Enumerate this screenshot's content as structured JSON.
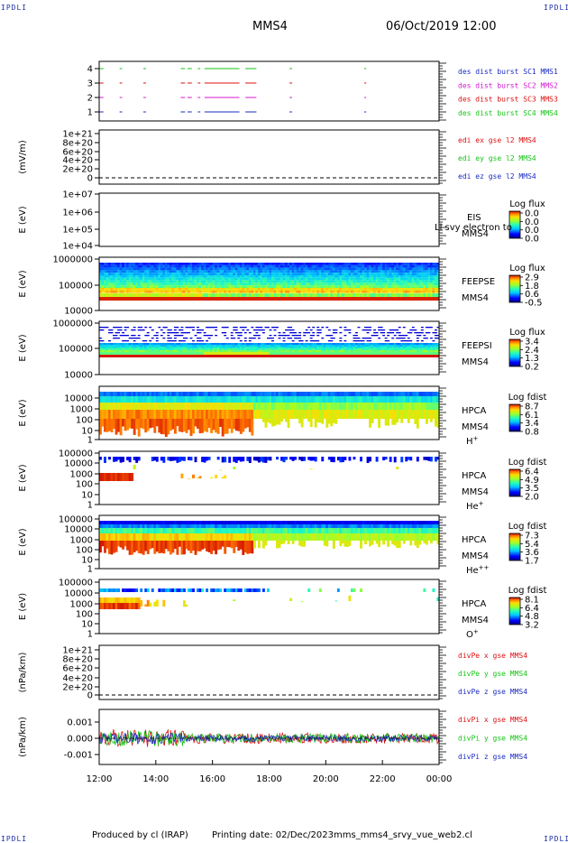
{
  "corners": {
    "tl": "IPDLI",
    "tr": "IPDLI",
    "bl": "IPDLI",
    "br": "IPDLI"
  },
  "header": {
    "spacecraft": "MMS4",
    "datetime": "06/Oct/2019 12:00"
  },
  "footer": {
    "produced_by": "Produced by cl (IRAP)",
    "printing_date": "Printing date: 02/Dec/2023",
    "filename": "mms_mms4_srvy_vue_web2.cl"
  },
  "colors": {
    "mms1": "#1a2cc0",
    "mms2": "#d01ad0",
    "mms3": "#dd1111",
    "mms4": "#16c416",
    "red": "#dd1111",
    "green": "#16c416",
    "blue": "#1a2cc0"
  },
  "chart_data": [
    {
      "type": "timeline",
      "panel": "burst",
      "ylabel": "",
      "yticks": [
        "4",
        "3",
        "2",
        "1"
      ],
      "legend": [
        {
          "text": "des dist burst SC1 MMS1",
          "color": "#1a2cc0"
        },
        {
          "text": "des dist burst SC2 MMS2",
          "color": "#d01ad0"
        },
        {
          "text": "des dist burst SC3 MMS3",
          "color": "#dd1111"
        },
        {
          "text": "des dist burst SC4 MMS4",
          "color": "#16c416"
        }
      ]
    },
    {
      "type": "line",
      "panel": "edi",
      "ylabel": "(mV/m)",
      "yticks": [
        "1e+21",
        "8e+20",
        "6e+20",
        "4e+20",
        "2e+20",
        "0"
      ],
      "legend": [
        {
          "text": "edi ex gse l2 MMS4",
          "color": "#dd1111"
        },
        {
          "text": "edi ey gse l2 MMS4",
          "color": "#16c416"
        },
        {
          "text": "edi ez gse l2 MMS4",
          "color": "#1a2cc0"
        }
      ]
    },
    {
      "type": "heatmap",
      "panel": "eis",
      "ylabel": "E (eV)",
      "yticks": [
        "1e+07",
        "1e+06",
        "1e+05",
        "1e+04"
      ],
      "labels": [
        "EIS",
        "MMS4"
      ],
      "overlay": "Ll svy electron to",
      "colorbar": {
        "title": "Log flux",
        "ticks": [
          "0.0",
          "0.0",
          "0.0",
          "0.0"
        ]
      }
    },
    {
      "type": "heatmap",
      "panel": "feepse",
      "ylabel": "E (eV)",
      "yticks": [
        "1000000",
        "100000",
        "10000"
      ],
      "labels": [
        "FEEPSE",
        "MMS4"
      ],
      "colorbar": {
        "title": "Log flux",
        "ticks": [
          "2.9",
          "1.8",
          "0.6",
          "-0.5"
        ]
      }
    },
    {
      "type": "heatmap",
      "panel": "feepsi",
      "ylabel": "E (eV)",
      "yticks": [
        "1000000",
        "100000",
        "10000"
      ],
      "labels": [
        "FEEPSI",
        "MMS4"
      ],
      "colorbar": {
        "title": "Log flux",
        "ticks": [
          "3.4",
          "2.4",
          "1.3",
          "0.2"
        ]
      }
    },
    {
      "type": "heatmap",
      "panel": "hpca_h",
      "ylabel": "E (eV)",
      "yticks": [
        "10000",
        "1000",
        "100",
        "10",
        "1"
      ],
      "labels": [
        "HPCA",
        "MMS4"
      ],
      "species": {
        "base": "H",
        "sup": "+"
      },
      "colorbar": {
        "title": "Log fdist",
        "ticks": [
          "8.7",
          "6.1",
          "3.4",
          "0.8"
        ]
      }
    },
    {
      "type": "heatmap",
      "panel": "hpca_he",
      "ylabel": "E (eV)",
      "yticks": [
        "100000",
        "10000",
        "1000",
        "100",
        "10",
        "1"
      ],
      "labels": [
        "HPCA",
        "MMS4"
      ],
      "species": {
        "base": "He",
        "sup": "+"
      },
      "colorbar": {
        "title": "Log fdist",
        "ticks": [
          "6.4",
          "4.9",
          "3.5",
          "2.0"
        ]
      }
    },
    {
      "type": "heatmap",
      "panel": "hpca_hepp",
      "ylabel": "E (eV)",
      "yticks": [
        "100000",
        "10000",
        "1000",
        "100",
        "10",
        "1"
      ],
      "labels": [
        "HPCA",
        "MMS4"
      ],
      "species": {
        "base": "He",
        "sup": "++"
      },
      "colorbar": {
        "title": "Log fdist",
        "ticks": [
          "7.3",
          "5.4",
          "3.6",
          "1.7"
        ]
      }
    },
    {
      "type": "heatmap",
      "panel": "hpca_o",
      "ylabel": "E (eV)",
      "yticks": [
        "100000",
        "10000",
        "1000",
        "100",
        "10",
        "1"
      ],
      "labels": [
        "HPCA",
        "MMS4"
      ],
      "species": {
        "base": "O",
        "sup": "+"
      },
      "colorbar": {
        "title": "Log fdist",
        "ticks": [
          "8.1",
          "6.4",
          "4.8",
          "3.2"
        ]
      }
    },
    {
      "type": "line",
      "panel": "divpe",
      "ylabel": "(nPa/km)",
      "yticks": [
        "1e+21",
        "8e+20",
        "6e+20",
        "4e+20",
        "2e+20",
        "0"
      ],
      "legend": [
        {
          "text": "divPe x gse MMS4",
          "color": "#dd1111"
        },
        {
          "text": "divPe y gse MMS4",
          "color": "#16c416"
        },
        {
          "text": "divPe z gse MMS4",
          "color": "#1a2cc0"
        }
      ]
    },
    {
      "type": "line",
      "panel": "divpi",
      "ylabel": "(nPa/km)",
      "yticks": [
        "0.001",
        "0.000",
        "-0.001"
      ],
      "legend": [
        {
          "text": "divPi x gse MMS4",
          "color": "#dd1111"
        },
        {
          "text": "divPi y gse MMS4",
          "color": "#16c416"
        },
        {
          "text": "divPi z gse MMS4",
          "color": "#1a2cc0"
        }
      ],
      "xticks": [
        "12:00",
        "14:00",
        "16:00",
        "18:00",
        "20:00",
        "22:00",
        "00:00"
      ]
    }
  ]
}
